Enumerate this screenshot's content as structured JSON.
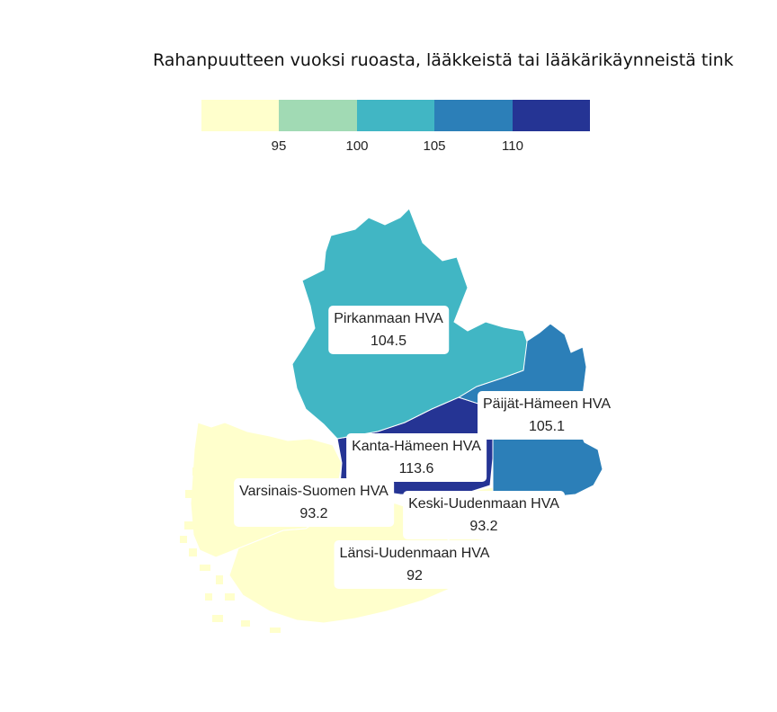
{
  "title": "Rahanpuutteen vuoksi ruoasta, lääkkeistä tai lääkärikäynneistä tink",
  "legend": {
    "colors": [
      "#ffffcc",
      "#a1dab4",
      "#41b6c4",
      "#2c7fb8",
      "#253494"
    ],
    "ticks": [
      "95",
      "100",
      "105",
      "110"
    ]
  },
  "regions": [
    {
      "id": "pirkanmaa",
      "name": "Pirkanmaan HVA",
      "value": "104.5",
      "color": "#41b6c4"
    },
    {
      "id": "paijat-hame",
      "name": "Päijät-Hämeen HVA",
      "value": "105.1",
      "color": "#2c7fb8"
    },
    {
      "id": "kanta-hame",
      "name": "Kanta-Hämeen HVA",
      "value": "113.6",
      "color": "#253494"
    },
    {
      "id": "varsinais-suomi",
      "name": "Varsinais-Suomen HVA",
      "value": "93.2",
      "color": "#ffffcc"
    },
    {
      "id": "keski-uusimaa",
      "name": "Keski-Uudenmaan HVA",
      "value": "93.2",
      "color": "#ffffcc"
    },
    {
      "id": "lansi-uusimaa",
      "name": "Länsi-Uudenmaan HVA",
      "value": "92",
      "color": "#ffffcc"
    }
  ]
}
